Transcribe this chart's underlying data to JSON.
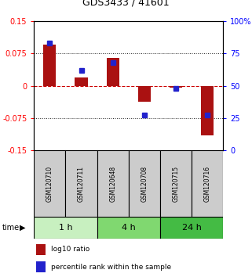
{
  "title": "GDS3433 / 41601",
  "samples": [
    "GSM120710",
    "GSM120711",
    "GSM120648",
    "GSM120708",
    "GSM120715",
    "GSM120716"
  ],
  "log10_ratio": [
    0.095,
    0.02,
    0.065,
    -0.038,
    -0.005,
    -0.115
  ],
  "percentile_rank": [
    83,
    62,
    68,
    27,
    48,
    27
  ],
  "time_groups": [
    {
      "label": "1 h",
      "start": 0,
      "end": 1,
      "color": "#c8f0c0"
    },
    {
      "label": "4 h",
      "start": 2,
      "end": 3,
      "color": "#80d870"
    },
    {
      "label": "24 h",
      "start": 4,
      "end": 5,
      "color": "#44bb44"
    }
  ],
  "ylim_left": [
    -0.15,
    0.15
  ],
  "ylim_right": [
    0,
    100
  ],
  "yticks_left": [
    -0.15,
    -0.075,
    0,
    0.075,
    0.15
  ],
  "yticks_right": [
    0,
    25,
    50,
    75,
    100
  ],
  "ytick_labels_left": [
    "-0.15",
    "-0.075",
    "0",
    "0.075",
    "0.15"
  ],
  "ytick_labels_right": [
    "0",
    "25",
    "50",
    "75",
    "100%"
  ],
  "bar_color": "#aa1111",
  "dot_color": "#2222cc",
  "sample_box_color": "#cccccc",
  "bg_color": "#ffffff",
  "plot_bg": "#ffffff",
  "hline_zero_color": "#cc0000",
  "hline_dotted_color": "#222222",
  "bar_width": 0.4,
  "title_fontsize": 9,
  "tick_fontsize": 7,
  "sample_fontsize": 5.5,
  "time_fontsize": 8,
  "legend_fontsize": 6.5
}
